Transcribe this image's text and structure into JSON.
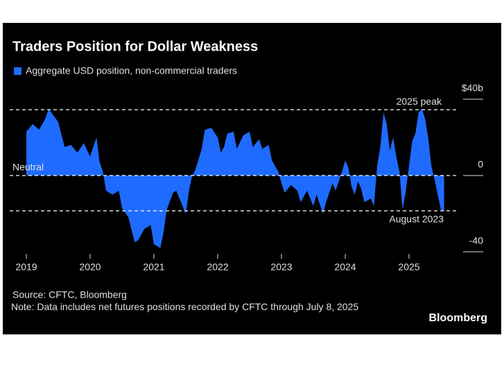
{
  "chart_data": {
    "type": "area",
    "title": "Traders Position for Dollar Weakness",
    "legend": "Aggregate USD position, non-commercial traders",
    "series_name": "Aggregate USD position, non-commercial traders",
    "color": "#1f6bff",
    "source": "Source: CFTC, Bloomberg",
    "note": "Note: Data includes net futures positions recorded by CFTC through July 8, 2025",
    "brand": "Bloomberg",
    "annotations": [
      {
        "label": "2025 peak",
        "value": 34.5
      },
      {
        "label": "Neutral",
        "value": 0
      },
      {
        "label": "August 2023",
        "value": -18.5
      }
    ],
    "x": [
      2019.0,
      2019.1,
      2019.2,
      2019.3,
      2019.35,
      2019.5,
      2019.6,
      2019.7,
      2019.8,
      2019.9,
      2020.0,
      2020.1,
      2020.15,
      2020.2,
      2020.25,
      2020.35,
      2020.45,
      2020.5,
      2020.6,
      2020.7,
      2020.75,
      2020.85,
      2020.95,
      2021.0,
      2021.1,
      2021.15,
      2021.2,
      2021.3,
      2021.35,
      2021.45,
      2021.5,
      2021.55,
      2021.6,
      2021.65,
      2021.75,
      2021.8,
      2021.9,
      2022.0,
      2022.05,
      2022.1,
      2022.15,
      2022.25,
      2022.3,
      2022.4,
      2022.5,
      2022.55,
      2022.65,
      2022.7,
      2022.8,
      2022.85,
      2022.95,
      2023.0,
      2023.05,
      2023.15,
      2023.25,
      2023.3,
      2023.4,
      2023.5,
      2023.55,
      2023.65,
      2023.7,
      2023.8,
      2023.85,
      2023.95,
      2024.0,
      2024.05,
      2024.1,
      2024.15,
      2024.2,
      2024.25,
      2024.3,
      2024.4,
      2024.45,
      2024.5,
      2024.55,
      2024.6,
      2024.65,
      2024.7,
      2024.75,
      2024.8,
      2024.85,
      2024.9,
      2024.95,
      2025.0,
      2025.05,
      2025.1,
      2025.15,
      2025.2,
      2025.25,
      2025.3,
      2025.35,
      2025.4,
      2025.45,
      2025.5,
      2025.55
    ],
    "values": [
      23,
      27,
      24,
      30,
      35,
      28,
      15,
      16,
      12,
      17,
      10,
      20,
      7,
      2,
      -8,
      -10,
      -8,
      -17,
      -22,
      -35,
      -34,
      -28,
      -26,
      -36,
      -38,
      -30,
      -18,
      -9,
      -8,
      -16,
      -20,
      -8,
      0,
      3,
      14,
      24,
      25,
      20,
      12,
      15,
      22,
      23,
      14,
      21,
      23,
      15,
      19,
      14,
      16,
      8,
      2,
      -4,
      -9,
      -5,
      -8,
      -14,
      -8,
      -16,
      -10,
      -20,
      -14,
      -4,
      -8,
      2,
      8,
      4,
      -6,
      -10,
      -3,
      -7,
      -14,
      -12,
      -16,
      5,
      15,
      33,
      27,
      13,
      20,
      10,
      2,
      -18,
      -8,
      5,
      18,
      22,
      33,
      35,
      30,
      20,
      5,
      -2,
      -10,
      -18,
      -19
    ],
    "xlim": [
      2019,
      2025.6
    ],
    "xticks": [
      2019,
      2020,
      2021,
      2022,
      2023,
      2024,
      2025
    ],
    "ylim": [
      -40,
      40
    ],
    "yticks": [
      {
        "value": 40,
        "label": "$40b"
      },
      0,
      -40
    ]
  }
}
